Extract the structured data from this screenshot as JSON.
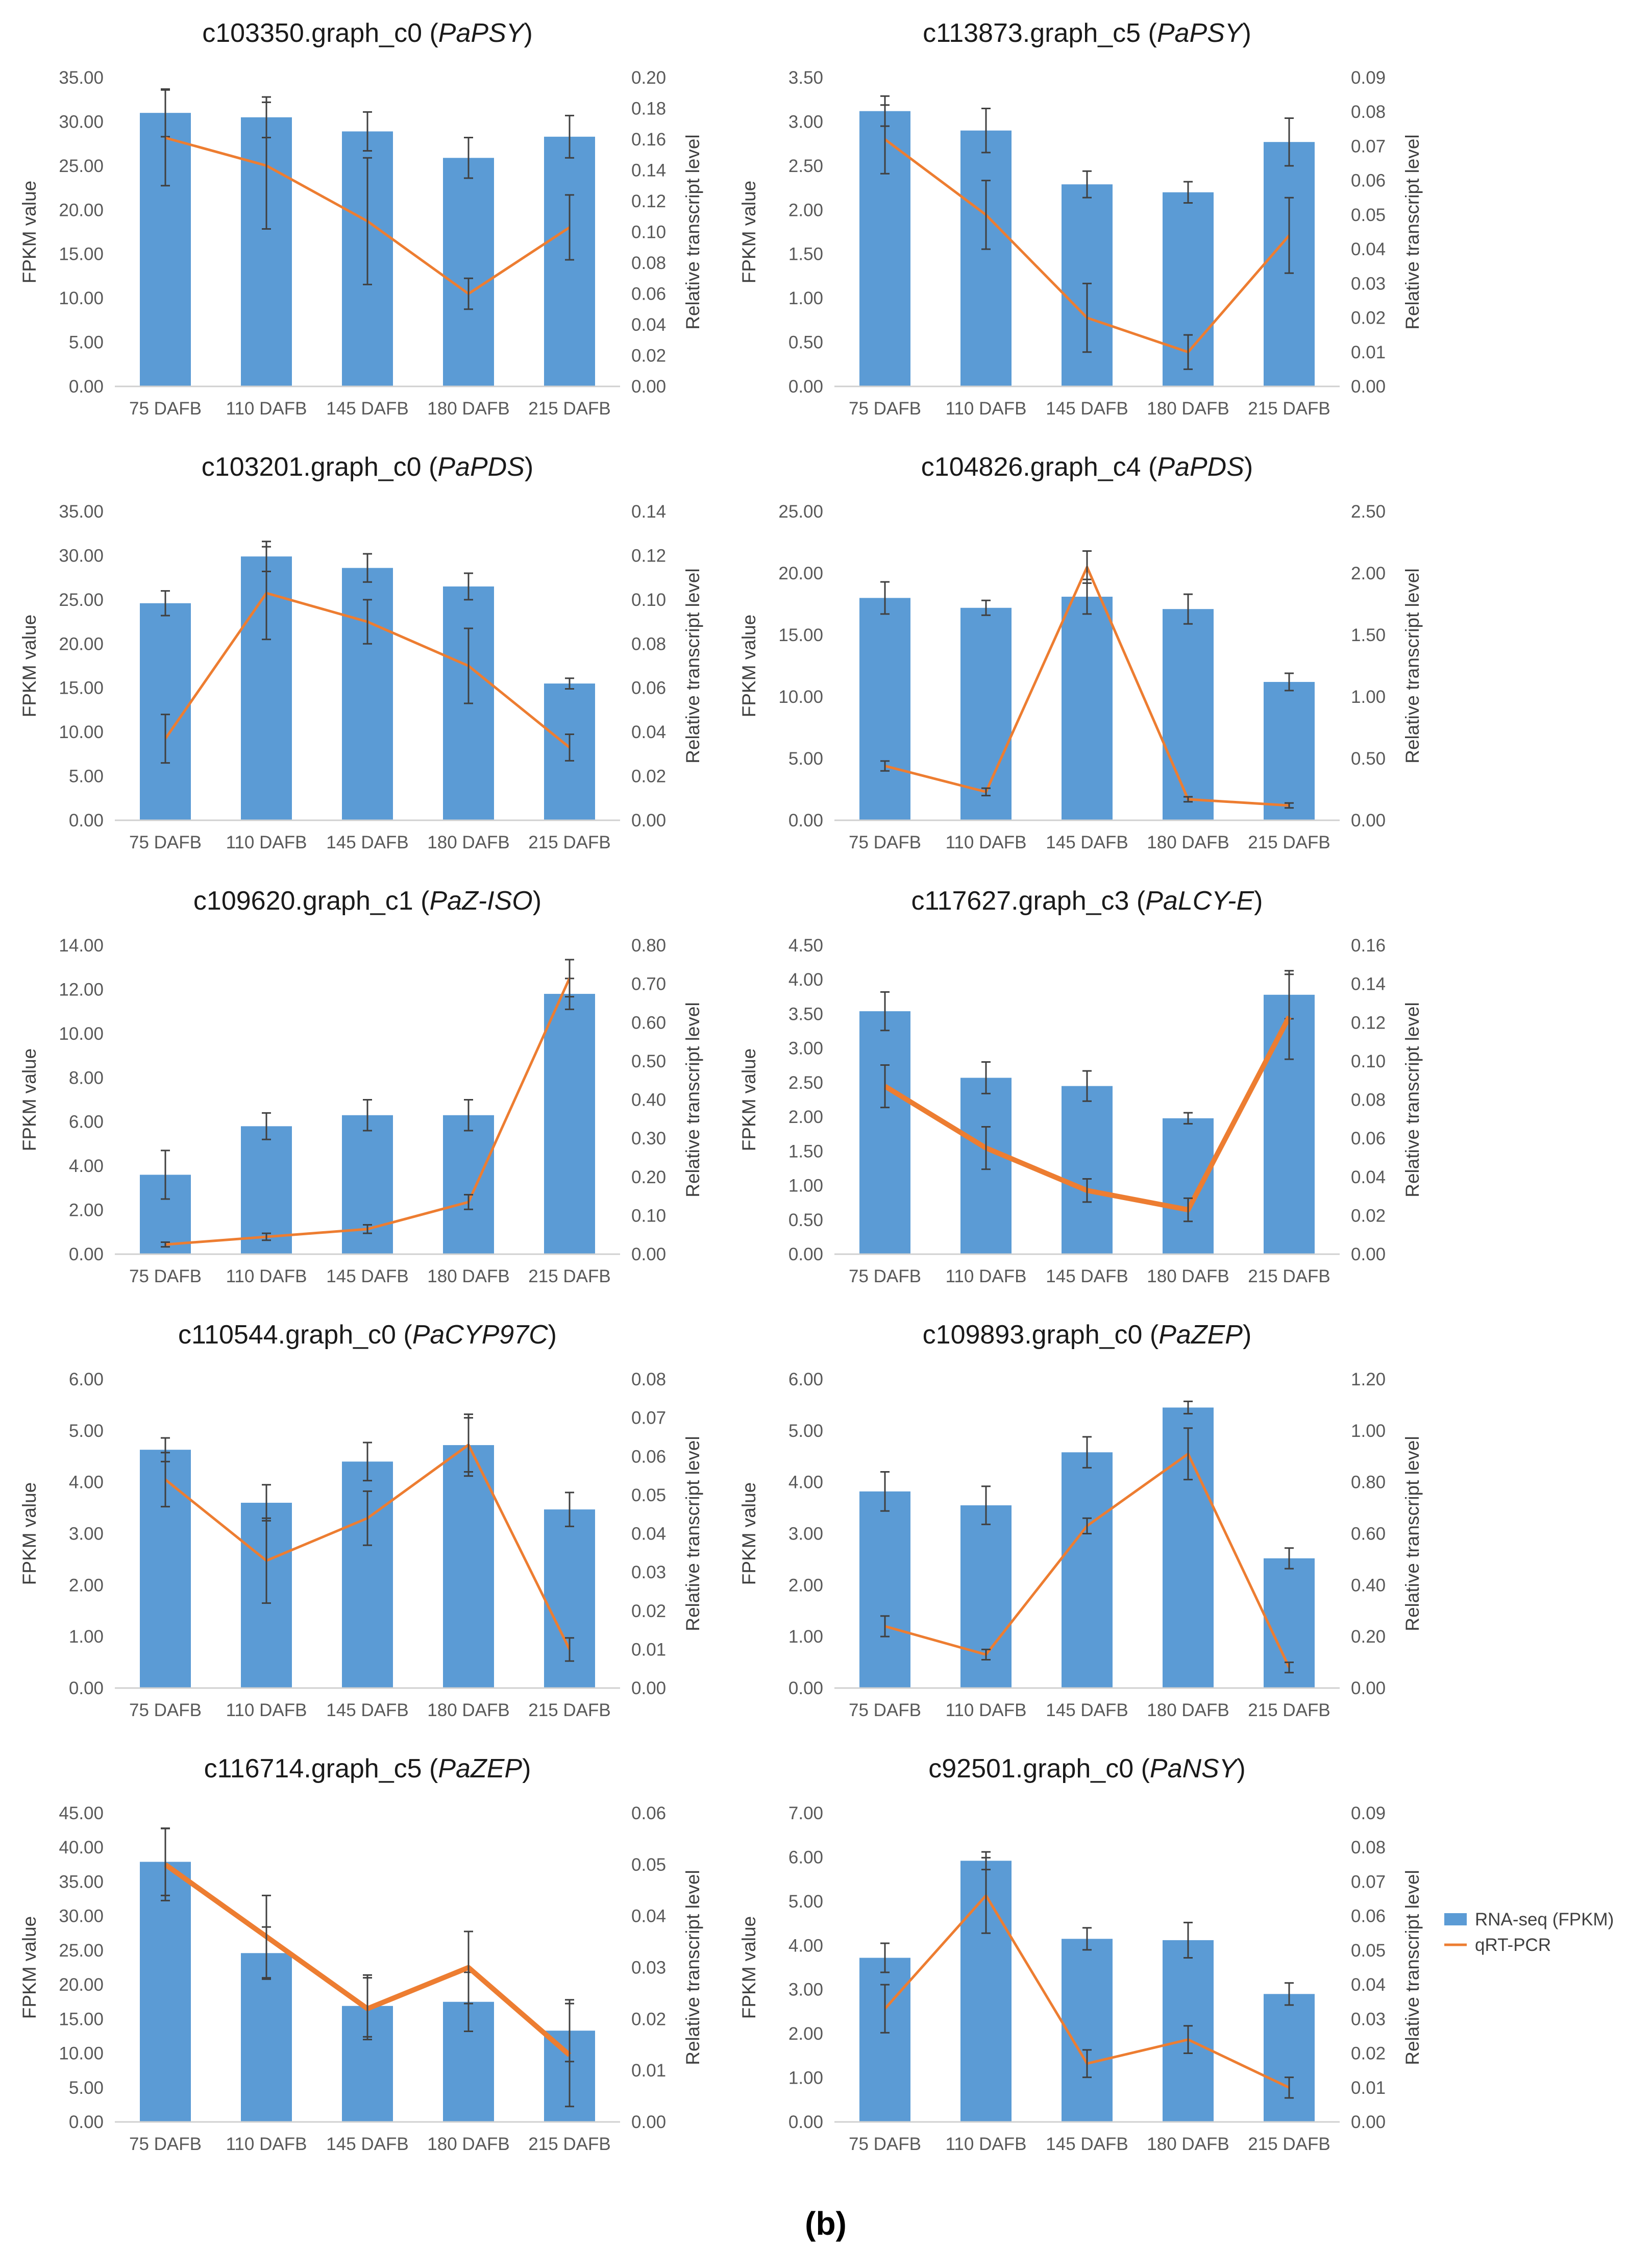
{
  "colors": {
    "bar": "#5b9bd5",
    "line": "#ed7d31",
    "axis": "#d0d0d0",
    "errorbar": "#404040"
  },
  "figure_label": "(b)",
  "legend": {
    "bar_label": "RNA-seq (FPKM)",
    "line_label": "qRT-PCR"
  },
  "chart_data": [
    {
      "type": "bar+line",
      "title_prefix": "c103350.graph_c0 (",
      "gene": "PaPSY",
      "title_suffix": ")",
      "categories": [
        "75 DAFB",
        "110 DAFB",
        "145 DAFB",
        "180 DAFB",
        "215 DAFB"
      ],
      "ylabel": "FPKM value",
      "y2label": "Relative transcript level",
      "ylim": [
        0,
        35
      ],
      "yticks": [
        "0.00",
        "5.00",
        "10.00",
        "15.00",
        "20.00",
        "25.00",
        "30.00",
        "35.00"
      ],
      "y2lim": [
        0,
        0.2
      ],
      "y2ticks": [
        "0.00",
        "0.02",
        "0.04",
        "0.06",
        "0.08",
        "0.10",
        "0.12",
        "0.14",
        "0.16",
        "0.18",
        "0.20"
      ],
      "bars": [
        31.0,
        30.5,
        28.9,
        25.9,
        28.3
      ],
      "bar_err": [
        2.7,
        2.3,
        2.2,
        2.3,
        2.4
      ],
      "line": [
        0.161,
        0.143,
        0.107,
        0.06,
        0.103
      ],
      "line_err": [
        0.031,
        0.041,
        0.041,
        0.01,
        0.021
      ],
      "line_width": "thin"
    },
    {
      "type": "bar+line",
      "title_prefix": "c113873.graph_c5 (",
      "gene": "PaPSY",
      "title_suffix": ")",
      "categories": [
        "75 DAFB",
        "110 DAFB",
        "145 DAFB",
        "180 DAFB",
        "215 DAFB"
      ],
      "ylabel": "FPKM value",
      "y2label": "Relative transcript level",
      "ylim": [
        0,
        3.5
      ],
      "yticks": [
        "0.00",
        "0.50",
        "1.00",
        "1.50",
        "2.00",
        "2.50",
        "3.00",
        "3.50"
      ],
      "y2lim": [
        0,
        0.09
      ],
      "y2ticks": [
        "0.00",
        "0.01",
        "0.02",
        "0.03",
        "0.04",
        "0.05",
        "0.06",
        "0.07",
        "0.08",
        "0.09"
      ],
      "bars": [
        3.12,
        2.9,
        2.29,
        2.2,
        2.77
      ],
      "bar_err": [
        0.17,
        0.25,
        0.15,
        0.12,
        0.27
      ],
      "line": [
        0.072,
        0.05,
        0.02,
        0.01,
        0.044
      ],
      "line_err": [
        0.01,
        0.01,
        0.01,
        0.005,
        0.011
      ],
      "line_width": "thin"
    },
    {
      "type": "bar+line",
      "title_prefix": "c103201.graph_c0 (",
      "gene": "PaPDS",
      "title_suffix": ")",
      "categories": [
        "75 DAFB",
        "110 DAFB",
        "145 DAFB",
        "180 DAFB",
        "215 DAFB"
      ],
      "ylabel": "FPKM value",
      "y2label": "Relative transcript level",
      "ylim": [
        0,
        35
      ],
      "yticks": [
        "0.00",
        "5.00",
        "10.00",
        "15.00",
        "20.00",
        "25.00",
        "30.00",
        "35.00"
      ],
      "y2lim": [
        0,
        0.14
      ],
      "y2ticks": [
        "0.00",
        "0.02",
        "0.04",
        "0.06",
        "0.08",
        "0.10",
        "0.12",
        "0.14"
      ],
      "bars": [
        24.6,
        29.9,
        28.6,
        26.5,
        15.5
      ],
      "bar_err": [
        1.4,
        1.7,
        1.6,
        1.5,
        0.6
      ],
      "line": [
        0.037,
        0.103,
        0.09,
        0.07,
        0.033
      ],
      "line_err": [
        0.011,
        0.021,
        0.01,
        0.017,
        0.006
      ],
      "line_width": "thin"
    },
    {
      "type": "bar+line",
      "title_prefix": "c104826.graph_c4 (",
      "gene": "PaPDS",
      "title_suffix": ")",
      "categories": [
        "75 DAFB",
        "110 DAFB",
        "145 DAFB",
        "180 DAFB",
        "215 DAFB"
      ],
      "ylabel": "FPKM value",
      "y2label": "Relative transcript level",
      "ylim": [
        0,
        25
      ],
      "yticks": [
        "0.00",
        "5.00",
        "10.00",
        "15.00",
        "20.00",
        "25.00"
      ],
      "y2lim": [
        0,
        2.5
      ],
      "y2ticks": [
        "0.00",
        "0.50",
        "1.00",
        "1.50",
        "2.00",
        "2.50"
      ],
      "bars": [
        18.0,
        17.2,
        18.1,
        17.1,
        11.2
      ],
      "bar_err": [
        1.3,
        0.6,
        1.4,
        1.2,
        0.7
      ],
      "line": [
        0.44,
        0.23,
        2.05,
        0.17,
        0.12
      ],
      "line_err": [
        0.04,
        0.03,
        0.13,
        0.02,
        0.02
      ],
      "line_width": "thin"
    },
    {
      "type": "bar+line",
      "title_prefix": "c109620.graph_c1 (",
      "gene": "PaZ-ISO",
      "title_suffix": ")",
      "categories": [
        "75 DAFB",
        "110 DAFB",
        "145 DAFB",
        "180 DAFB",
        "215 DAFB"
      ],
      "ylabel": "FPKM value",
      "y2label": "Relative transcript level",
      "ylim": [
        0,
        14
      ],
      "yticks": [
        "0.00",
        "2.00",
        "4.00",
        "6.00",
        "8.00",
        "10.00",
        "12.00",
        "14.00"
      ],
      "y2lim": [
        0,
        0.8
      ],
      "y2ticks": [
        "0.00",
        "0.10",
        "0.20",
        "0.30",
        "0.40",
        "0.50",
        "0.60",
        "0.70",
        "0.80"
      ],
      "bars": [
        3.6,
        5.8,
        6.3,
        6.3,
        11.8
      ],
      "bar_err": [
        1.1,
        0.6,
        0.7,
        0.7,
        0.7
      ],
      "line": [
        0.025,
        0.045,
        0.065,
        0.135,
        0.715
      ],
      "line_err": [
        0.006,
        0.009,
        0.011,
        0.019,
        0.048
      ],
      "line_width": "thin"
    },
    {
      "type": "bar+line",
      "title_prefix": "c117627.graph_c3 (",
      "gene": "PaLCY-E",
      "title_suffix": ")",
      "categories": [
        "75 DAFB",
        "110 DAFB",
        "145 DAFB",
        "180 DAFB",
        "215 DAFB"
      ],
      "ylabel": "FPKM value",
      "y2label": "Relative transcript level",
      "ylim": [
        0,
        4.5
      ],
      "yticks": [
        "0.00",
        "0.50",
        "1.00",
        "1.50",
        "2.00",
        "2.50",
        "3.00",
        "3.50",
        "4.00",
        "4.50"
      ],
      "y2lim": [
        0,
        0.16
      ],
      "y2ticks": [
        "0.00",
        "0.02",
        "0.04",
        "0.06",
        "0.08",
        "0.10",
        "0.12",
        "0.14",
        "0.16"
      ],
      "bars": [
        3.54,
        2.57,
        2.45,
        1.98,
        3.78
      ],
      "bar_err": [
        0.28,
        0.23,
        0.22,
        0.08,
        0.35
      ],
      "line": [
        0.087,
        0.055,
        0.033,
        0.023,
        0.123
      ],
      "line_err": [
        0.011,
        0.011,
        0.006,
        0.006,
        0.022
      ],
      "line_width": "thick"
    },
    {
      "type": "bar+line",
      "title_prefix": "c110544.graph_c0 (",
      "gene": "PaCYP97C",
      "title_suffix": ")",
      "categories": [
        "75 DAFB",
        "110 DAFB",
        "145 DAFB",
        "180 DAFB",
        "215 DAFB"
      ],
      "ylabel": "FPKM value",
      "y2label": "Relative transcript level",
      "ylim": [
        0,
        6
      ],
      "yticks": [
        "0.00",
        "1.00",
        "2.00",
        "3.00",
        "4.00",
        "5.00",
        "6.00"
      ],
      "y2lim": [
        0,
        0.08
      ],
      "y2ticks": [
        "0.00",
        "0.01",
        "0.02",
        "0.03",
        "0.04",
        "0.05",
        "0.06",
        "0.07",
        "0.08"
      ],
      "bars": [
        4.63,
        3.6,
        4.4,
        4.72,
        3.47
      ],
      "bar_err": [
        0.23,
        0.35,
        0.37,
        0.6,
        0.33
      ],
      "line": [
        0.054,
        0.033,
        0.044,
        0.063,
        0.01
      ],
      "line_err": [
        0.007,
        0.011,
        0.007,
        0.007,
        0.003
      ],
      "line_width": "thin"
    },
    {
      "type": "bar+line",
      "title_prefix": "c109893.graph_c0 (",
      "gene": "PaZEP",
      "title_suffix": ")",
      "categories": [
        "75 DAFB",
        "110 DAFB",
        "145 DAFB",
        "180 DAFB",
        "215 DAFB"
      ],
      "ylabel": "FPKM value",
      "y2label": "Relative transcript level",
      "ylim": [
        0,
        6
      ],
      "yticks": [
        "0.00",
        "1.00",
        "2.00",
        "3.00",
        "4.00",
        "5.00",
        "6.00"
      ],
      "y2lim": [
        0,
        1.2
      ],
      "y2ticks": [
        "0.00",
        "0.20",
        "0.40",
        "0.60",
        "0.80",
        "1.00",
        "1.20"
      ],
      "bars": [
        3.82,
        3.55,
        4.58,
        5.45,
        2.52
      ],
      "bar_err": [
        0.38,
        0.37,
        0.3,
        0.12,
        0.2
      ],
      "line": [
        0.24,
        0.13,
        0.63,
        0.91,
        0.08
      ],
      "line_err": [
        0.04,
        0.02,
        0.03,
        0.1,
        0.02
      ],
      "line_width": "thin"
    },
    {
      "type": "bar+line",
      "title_prefix": "c116714.graph_c5  (",
      "gene": "PaZEP",
      "title_suffix": ")",
      "categories": [
        "75 DAFB",
        "110 DAFB",
        "145 DAFB",
        "180 DAFB",
        "215 DAFB"
      ],
      "ylabel": "FPKM value",
      "y2label": "Relative transcript level",
      "ylim": [
        0,
        45
      ],
      "yticks": [
        "0.00",
        "5.00",
        "10.00",
        "15.00",
        "20.00",
        "25.00",
        "30.00",
        "35.00",
        "40.00",
        "45.00"
      ],
      "y2lim": [
        0,
        0.06
      ],
      "y2ticks": [
        "0.00",
        "0.01",
        "0.02",
        "0.03",
        "0.04",
        "0.05",
        "0.06"
      ],
      "bars": [
        37.9,
        24.6,
        16.9,
        17.5,
        13.3
      ],
      "bar_err": [
        4.9,
        3.8,
        4.5,
        4.3,
        4.5
      ],
      "line": [
        0.05,
        0.036,
        0.022,
        0.03,
        0.013
      ],
      "line_err": [
        0.007,
        0.008,
        0.006,
        0.007,
        0.01
      ],
      "line_width": "thick"
    },
    {
      "type": "bar+line",
      "title_prefix": "c92501.graph_c0 (",
      "gene": "PaNSY",
      "title_suffix": ")",
      "categories": [
        "75 DAFB",
        "110 DAFB",
        "145 DAFB",
        "180 DAFB",
        "215 DAFB"
      ],
      "ylabel": "FPKM value",
      "y2label": "Relative transcript level",
      "ylim": [
        0,
        7
      ],
      "yticks": [
        "0.00",
        "1.00",
        "2.00",
        "3.00",
        "4.00",
        "5.00",
        "6.00",
        "7.00"
      ],
      "y2lim": [
        0,
        0.09
      ],
      "y2ticks": [
        "0.00",
        "0.01",
        "0.02",
        "0.03",
        "0.04",
        "0.05",
        "0.06",
        "0.07",
        "0.08",
        "0.09"
      ],
      "bars": [
        3.72,
        5.92,
        4.15,
        4.12,
        2.9
      ],
      "bar_err": [
        0.33,
        0.2,
        0.25,
        0.4,
        0.25
      ],
      "line": [
        0.033,
        0.066,
        0.017,
        0.024,
        0.01
      ],
      "line_err": [
        0.007,
        0.011,
        0.004,
        0.004,
        0.003
      ],
      "line_width": "thin"
    }
  ]
}
